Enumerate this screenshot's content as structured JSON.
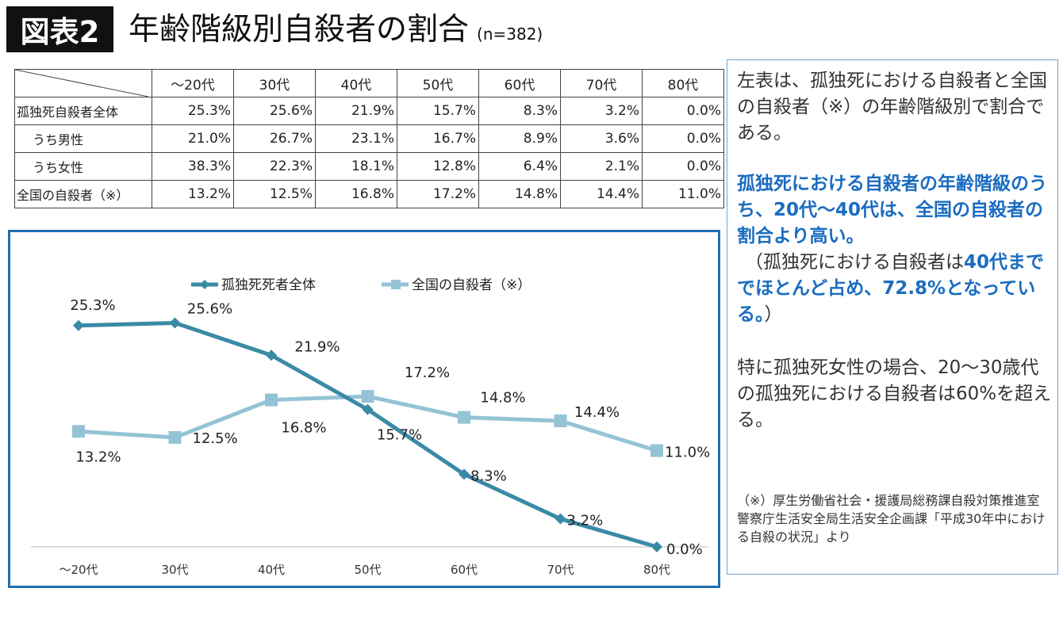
{
  "header": {
    "badge": "図表2",
    "title": "年齢階級別自殺者の割合",
    "n": "(n=382)"
  },
  "table": {
    "columns": [
      "～20代",
      "30代",
      "40代",
      "50代",
      "60代",
      "70代",
      "80代"
    ],
    "rows": [
      {
        "label": "孤独死自殺者全体",
        "values": [
          "25.3%",
          "25.6%",
          "21.9%",
          "15.7%",
          "8.3%",
          "3.2%",
          "0.0%"
        ]
      },
      {
        "label": "うち男性",
        "values": [
          "21.0%",
          "26.7%",
          "23.1%",
          "16.7%",
          "8.9%",
          "3.6%",
          "0.0%"
        ]
      },
      {
        "label": "うち女性",
        "values": [
          "38.3%",
          "22.3%",
          "18.1%",
          "12.8%",
          "6.4%",
          "2.1%",
          "0.0%"
        ]
      },
      {
        "label": "全国の自殺者（※）",
        "values": [
          "13.2%",
          "12.5%",
          "16.8%",
          "17.2%",
          "14.8%",
          "14.4%",
          "11.0%"
        ]
      }
    ]
  },
  "chart_data": {
    "type": "line",
    "categories": [
      "～20代",
      "30代",
      "40代",
      "50代",
      "60代",
      "70代",
      "80代"
    ],
    "series": [
      {
        "name": "孤独死死者全体",
        "color": "#3a8aa6",
        "marker": "diamond",
        "values": [
          25.3,
          25.6,
          21.9,
          15.7,
          8.3,
          3.2,
          0.0
        ],
        "labels": [
          "25.3%",
          "25.6%",
          "21.9%",
          "15.7%",
          "8.3%",
          "3.2%",
          "0.0%"
        ]
      },
      {
        "name": "全国の自殺者（※）",
        "color": "#94c3d6",
        "marker": "square",
        "values": [
          13.2,
          12.5,
          16.8,
          17.2,
          14.8,
          14.4,
          11.0
        ],
        "labels": [
          "13.2%",
          "12.5%",
          "16.8%",
          "17.2%",
          "14.8%",
          "14.4%",
          "11.0%"
        ]
      }
    ],
    "ylim": [
      0,
      27
    ],
    "legend_position": "top"
  },
  "note": {
    "p1": "左表は、孤独死における自殺者と全国の自殺者（※）の年齢階級別で割合である。",
    "p2": "孤独死における自殺者の年齢階級のうち、20代～40代は、全国の自殺者の割合より高い。",
    "p3a": "（孤独死における自殺者は",
    "p3b": "40代まででほとんど占め、72.8%となっている。",
    "p3c": "）",
    "p4": "特に孤独死女性の場合、20～30歳代の孤独死における自殺者は60%を超える。",
    "src": "（※）厚生労働省社会・援護局総務課自殺対策推進室 警察庁生活安全局生活安全企画課「平成30年中における自殺の状況」より"
  }
}
